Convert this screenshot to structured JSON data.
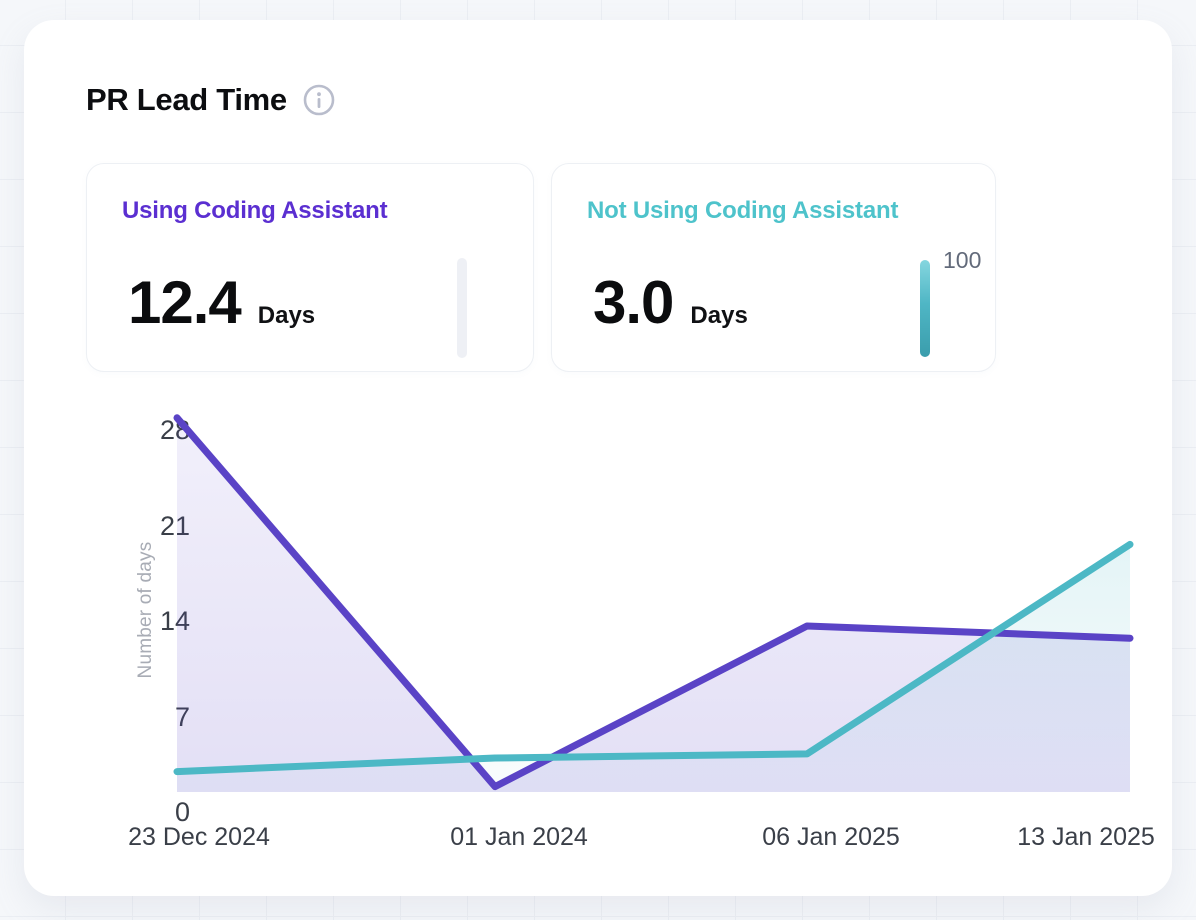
{
  "page": {
    "title": "PR Lead Time"
  },
  "stat_cards": [
    {
      "label": "Using Coding Assistant",
      "value": "12.4",
      "unit": "Days",
      "accent_color": "#5b2fd1",
      "gauge": {
        "filled": false
      }
    },
    {
      "label": "Not Using Coding Assistant",
      "value": "3.0",
      "unit": "Days",
      "accent_color": "#4ec3cb",
      "gauge": {
        "filled": true,
        "max_label": "100"
      }
    }
  ],
  "chart_data": {
    "type": "line",
    "title": "PR Lead Time",
    "categories": [
      "23 Dec 2024",
      "01 Jan 2024",
      "06 Jan 2025",
      "13 Jan 2025"
    ],
    "series": [
      {
        "name": "Using Coding Assistant",
        "color": "#5a43c6",
        "fill": "#5b45c8",
        "values": [
          27.5,
          0.4,
          12.2,
          11.3
        ]
      },
      {
        "name": "Not Using Coding Assistant",
        "color": "#4cb8c5",
        "fill": "#4db8c6",
        "values": [
          1.5,
          2.5,
          2.8,
          18.2
        ]
      }
    ],
    "xlabel": "",
    "ylabel": "Number of days",
    "y_ticks": [
      "28",
      "21",
      "14",
      "7",
      "0"
    ],
    "ylim": [
      0,
      28
    ],
    "grid": false,
    "legend": "none",
    "area": true
  }
}
